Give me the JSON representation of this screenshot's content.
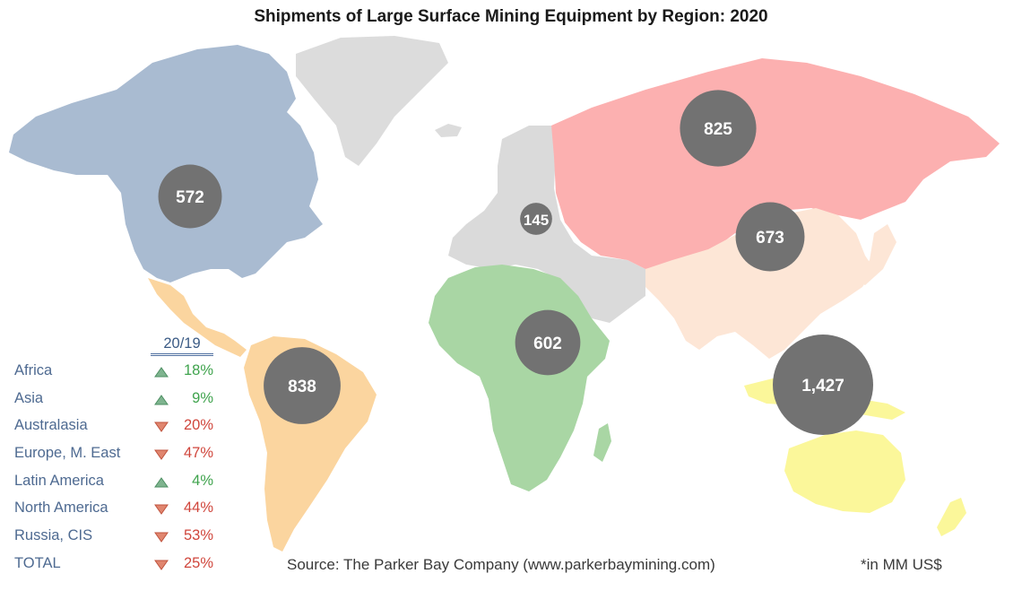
{
  "title": "Shipments of Large Surface Mining Equipment by Region:  2020",
  "colors": {
    "north_america": "#a9bbd1",
    "latin_america": "#fbd59f",
    "africa": "#a9d6a4",
    "europe_me": "#dadada",
    "russia_cis": "#fcb0b0",
    "asia": "#fde6d6",
    "australasia": "#fbf79a",
    "greenland": "#dcdcdc",
    "bubble": "#727272",
    "up": "#3fa34d",
    "down": "#d0463c"
  },
  "bubbles": [
    {
      "region": "North America",
      "label": "572",
      "value": 572
    },
    {
      "region": "Latin America",
      "label": "838",
      "value": 838
    },
    {
      "region": "Europe, M. East",
      "label": "145",
      "value": 145
    },
    {
      "region": "Africa",
      "label": "602",
      "value": 602
    },
    {
      "region": "Russia, CIS",
      "label": "825",
      "value": 825
    },
    {
      "region": "Asia",
      "label": "673",
      "value": 673
    },
    {
      "region": "Australasia",
      "label": "1,427",
      "value": 1427
    }
  ],
  "legend": {
    "header": "20/19",
    "rows": [
      {
        "name": "Africa",
        "direction": "up",
        "change": "18%"
      },
      {
        "name": "Asia",
        "direction": "up",
        "change": "9%"
      },
      {
        "name": "Australasia",
        "direction": "down",
        "change": "20%"
      },
      {
        "name": "Europe, M. East",
        "direction": "down",
        "change": "47%"
      },
      {
        "name": "Latin America",
        "direction": "up",
        "change": "4%"
      },
      {
        "name": "North America",
        "direction": "down",
        "change": "44%"
      },
      {
        "name": "Russia, CIS",
        "direction": "down",
        "change": "53%"
      },
      {
        "name": "TOTAL",
        "direction": "down",
        "change": "25%"
      }
    ]
  },
  "source": "Source:  The Parker Bay Company (www.parkerbaymining.com)",
  "unit_note": "*in MM US$"
}
